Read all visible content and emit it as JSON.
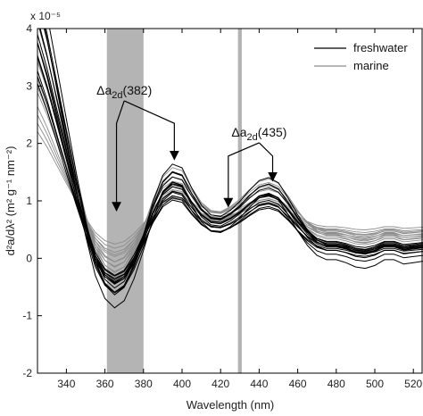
{
  "chart_data": {
    "type": "line",
    "title": "",
    "xlabel": "Wavelength (nm)",
    "ylabel": "d²a/dλ² (m² g⁻¹ nm⁻²)",
    "xlim": [
      325,
      525
    ],
    "ylim": [
      -2,
      4
    ],
    "y_scale_label": "x 10⁻⁵",
    "x_ticks": [
      340,
      360,
      380,
      400,
      420,
      440,
      460,
      480,
      500,
      520
    ],
    "y_ticks": [
      -2,
      -1,
      0,
      1,
      2,
      3,
      4
    ],
    "x_tick_labels": [
      "340",
      "360",
      "380",
      "400",
      "420",
      "440",
      "460",
      "480",
      "500",
      "520"
    ],
    "y_tick_labels": [
      "-2",
      "-1",
      "0",
      "1",
      "2",
      "3",
      "4"
    ],
    "grid": false,
    "legend": {
      "placement": "top-right",
      "entries": [
        {
          "label": "freshwater",
          "color": "#000000"
        },
        {
          "label": "marine",
          "color": "#8c8c8c"
        }
      ]
    },
    "shaded_bands": [
      {
        "x0": 361,
        "x1": 380,
        "color": "#b4b4b4"
      },
      {
        "x0": 429,
        "x1": 431,
        "color": "#b4b4b4"
      }
    ],
    "annotations": [
      {
        "symbol": "Δa",
        "subscript": "2d",
        "suffix": "(382)",
        "x": 370,
        "y": 2.85,
        "arrow_tips": [
          [
            366,
            0.83
          ],
          [
            396,
            1.72
          ]
        ],
        "arrow_bend_y": 2.35
      },
      {
        "symbol": "Δa",
        "subscript": "2d",
        "suffix": "(435)",
        "x": 440,
        "y": 2.12,
        "arrow_tips": [
          [
            424,
            0.9
          ],
          [
            447,
            1.35
          ]
        ],
        "arrow_bend_y": 1.78
      }
    ],
    "series_template": {
      "x": [
        325,
        330,
        335,
        340,
        345,
        350,
        355,
        360,
        365,
        370,
        375,
        380,
        385,
        390,
        395,
        400,
        405,
        410,
        415,
        420,
        425,
        430,
        435,
        440,
        445,
        450,
        455,
        460,
        465,
        470,
        475,
        480,
        485,
        490,
        495,
        500,
        505,
        510,
        515,
        520,
        525
      ],
      "y": [
        3.9,
        3.3,
        2.6,
        1.9,
        1.2,
        0.55,
        0.0,
        -0.32,
        -0.45,
        -0.35,
        -0.05,
        0.35,
        0.8,
        1.15,
        1.3,
        1.25,
        0.98,
        0.75,
        0.62,
        0.6,
        0.68,
        0.8,
        0.95,
        1.08,
        1.12,
        1.05,
        0.85,
        0.62,
        0.42,
        0.28,
        0.22,
        0.22,
        0.18,
        0.12,
        0.1,
        0.14,
        0.22,
        0.22,
        0.16,
        0.18,
        0.2
      ]
    },
    "series": [
      {
        "group": "freshwater",
        "color": "#000000",
        "scale": 1.3,
        "offset": -0.05
      },
      {
        "group": "freshwater",
        "color": "#000000",
        "scale": 1.2,
        "offset": -0.05
      },
      {
        "group": "freshwater",
        "color": "#000000",
        "scale": 1.15,
        "offset": 0.0
      },
      {
        "group": "freshwater",
        "color": "#000000",
        "scale": 1.1,
        "offset": -0.1
      },
      {
        "group": "freshwater",
        "color": "#000000",
        "scale": 1.05,
        "offset": 0.05
      },
      {
        "group": "freshwater",
        "color": "#000000",
        "scale": 1.0,
        "offset": 0.0
      },
      {
        "group": "freshwater",
        "color": "#000000",
        "scale": 1.0,
        "offset": -0.15
      },
      {
        "group": "freshwater",
        "color": "#000000",
        "scale": 0.95,
        "offset": 0.05
      },
      {
        "group": "freshwater",
        "color": "#000000",
        "scale": 0.9,
        "offset": 0.0
      },
      {
        "group": "freshwater",
        "color": "#000000",
        "scale": 0.88,
        "offset": 0.1
      },
      {
        "group": "freshwater",
        "color": "#000000",
        "scale": 0.85,
        "offset": -0.05
      },
      {
        "group": "freshwater",
        "color": "#000000",
        "scale": 0.8,
        "offset": 0.05
      },
      {
        "group": "freshwater",
        "color": "#000000",
        "scale": 0.78,
        "offset": 0.0
      },
      {
        "group": "freshwater",
        "color": "#000000",
        "scale": 1.25,
        "offset": -0.3
      },
      {
        "group": "marine",
        "color": "#8c8c8c",
        "scale": 1.1,
        "offset": 0.15
      },
      {
        "group": "marine",
        "color": "#8c8c8c",
        "scale": 1.0,
        "offset": 0.2
      },
      {
        "group": "marine",
        "color": "#8c8c8c",
        "scale": 0.9,
        "offset": 0.25
      },
      {
        "group": "marine",
        "color": "#8c8c8c",
        "scale": 0.85,
        "offset": 0.15
      },
      {
        "group": "marine",
        "color": "#8c8c8c",
        "scale": 0.8,
        "offset": 0.3
      },
      {
        "group": "marine",
        "color": "#8c8c8c",
        "scale": 0.75,
        "offset": 0.2
      },
      {
        "group": "marine",
        "color": "#8c8c8c",
        "scale": 0.7,
        "offset": 0.25
      },
      {
        "group": "marine",
        "color": "#8c8c8c",
        "scale": 0.65,
        "offset": 0.35
      },
      {
        "group": "marine",
        "color": "#8c8c8c",
        "scale": 0.6,
        "offset": 0.3
      },
      {
        "group": "marine",
        "color": "#8c8c8c",
        "scale": 0.55,
        "offset": 0.35
      },
      {
        "group": "marine",
        "color": "#8c8c8c",
        "scale": 0.5,
        "offset": 0.4
      },
      {
        "group": "marine",
        "color": "#8c8c8c",
        "scale": 0.45,
        "offset": 0.45
      }
    ]
  }
}
